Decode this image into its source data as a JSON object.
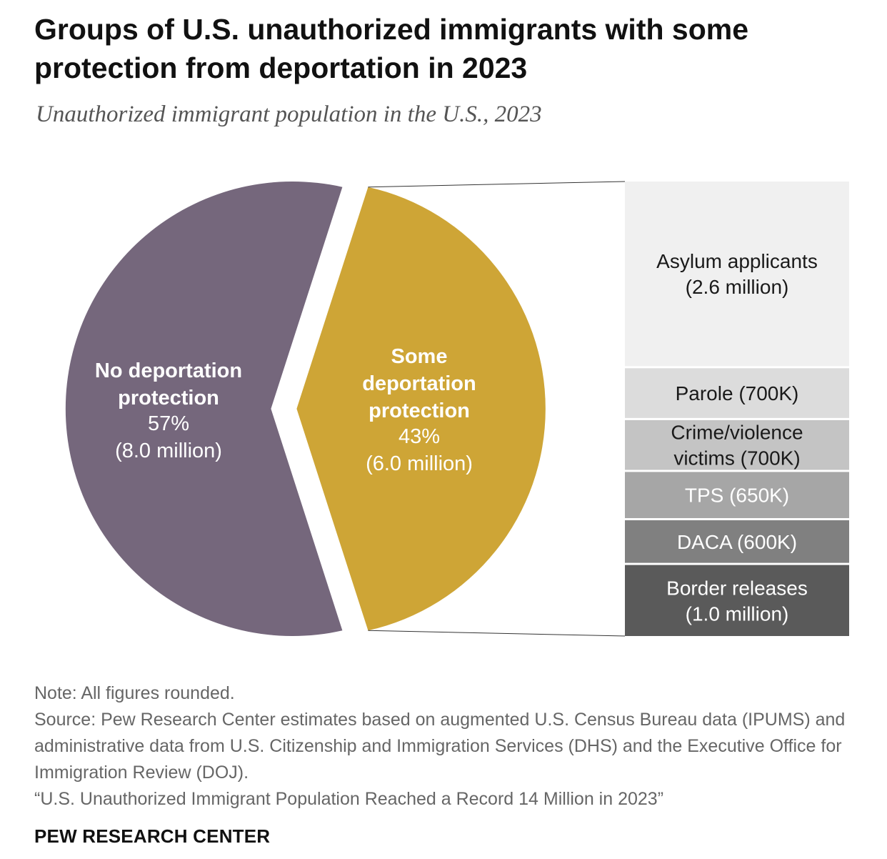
{
  "title": "Groups of U.S. unauthorized immigrants with some protection from deportation in 2023",
  "subtitle": "Unauthorized immigrant population in the U.S., 2023",
  "chart_data": {
    "type": "pie",
    "title": "Groups of U.S. unauthorized immigrants with some protection from deportation in 2023",
    "subtitle": "Unauthorized immigrant population in the U.S., 2023",
    "slices": [
      {
        "name": "No deportation protection",
        "label_lines": [
          "No deportation",
          "protection"
        ],
        "percent_label": "57%",
        "value_label": "(8.0 million)",
        "percent": 57,
        "value_millions": 8.0,
        "color": "#75677c"
      },
      {
        "name": "Some deportation protection",
        "label_lines": [
          "Some",
          "deportation",
          "protection"
        ],
        "percent_label": "43%",
        "value_label": "(6.0 million)",
        "percent": 43,
        "value_millions": 6.0,
        "color": "#cea536"
      }
    ],
    "breakdown": [
      {
        "name": "Asylum applicants",
        "lines": [
          "Asylum applicants",
          "(2.6 million)"
        ],
        "value_millions": 2.6,
        "color": "#f0f0f0",
        "text_color": "#1a1a1a"
      },
      {
        "name": "Parole",
        "lines": [
          "Parole (700K)"
        ],
        "value_millions": 0.7,
        "color": "#dcdcdc",
        "text_color": "#1a1a1a"
      },
      {
        "name": "Crime/violence victims",
        "lines": [
          "Crime/violence",
          "victims (700K)"
        ],
        "value_millions": 0.7,
        "color": "#c4c4c4",
        "text_color": "#1a1a1a"
      },
      {
        "name": "TPS",
        "lines": [
          "TPS (650K)"
        ],
        "value_millions": 0.65,
        "color": "#a6a6a6",
        "text_color": "#ffffff"
      },
      {
        "name": "DACA",
        "lines": [
          "DACA (600K)"
        ],
        "value_millions": 0.6,
        "color": "#808080",
        "text_color": "#ffffff"
      },
      {
        "name": "Border releases",
        "lines": [
          "Border releases",
          "(1.0 million)"
        ],
        "value_millions": 1.0,
        "color": "#5a5a5a",
        "text_color": "#ffffff"
      }
    ]
  },
  "footer": {
    "note": "Note: All figures rounded.",
    "source": "Source: Pew Research Center estimates based on augmented U.S. Census Bureau data (IPUMS) and administrative data from U.S. Citizenship and Immigration Services (DHS) and the Executive Office for Immigration Review (DOJ).",
    "report": "“U.S. Unauthorized Immigrant Population Reached a Record 14 Million in 2023”",
    "brand": "PEW RESEARCH CENTER"
  }
}
